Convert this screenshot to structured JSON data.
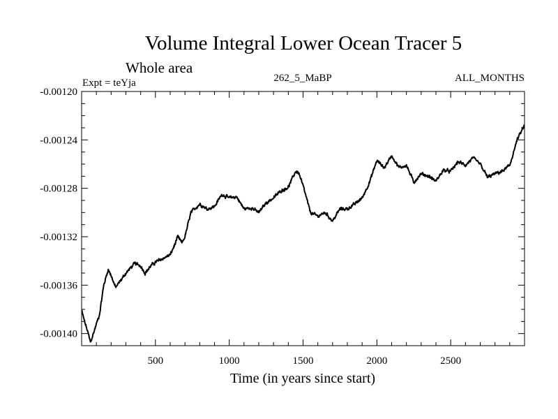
{
  "chart_data": {
    "type": "line",
    "title": "Volume Integral Lower Ocean Tracer 5",
    "subtitle": "Whole area",
    "experiment_label": "Expt = teYja",
    "run_label": "262_5_MaBP",
    "months_label": "ALL_MONTHS",
    "xlabel": "Time (in years since start)",
    "ylabel": "",
    "xlim": [
      0,
      3000
    ],
    "ylim": [
      -0.00141,
      -0.0012
    ],
    "x_ticks": [
      500,
      1000,
      1500,
      2000,
      2500
    ],
    "x_tick_labels": [
      "500",
      "1000",
      "1500",
      "2000",
      "2500"
    ],
    "y_ticks": [
      -0.0012,
      -0.00124,
      -0.00128,
      -0.00132,
      -0.00136,
      -0.0014
    ],
    "y_tick_labels": [
      "-0.00120",
      "-0.00124",
      "-0.00128",
      "-0.00132",
      "-0.00136",
      "-0.00140"
    ],
    "line_color": "#000000",
    "series": [
      {
        "name": "Volume Integral Lower Ocean Tracer 5",
        "x": [
          0,
          20,
          40,
          60,
          80,
          100,
          120,
          150,
          180,
          200,
          230,
          260,
          300,
          330,
          360,
          400,
          430,
          470,
          500,
          550,
          600,
          630,
          650,
          680,
          700,
          740,
          800,
          850,
          900,
          950,
          1000,
          1050,
          1100,
          1150,
          1200,
          1250,
          1300,
          1350,
          1400,
          1450,
          1470,
          1500,
          1550,
          1600,
          1650,
          1700,
          1750,
          1800,
          1850,
          1900,
          1950,
          2000,
          2050,
          2100,
          2150,
          2200,
          2250,
          2300,
          2350,
          2400,
          2450,
          2500,
          2550,
          2600,
          2650,
          2700,
          2750,
          2800,
          2850,
          2900,
          2950,
          3000
        ],
        "values": [
          -0.001381,
          -0.00139,
          -0.001398,
          -0.001407,
          -0.0014,
          -0.001392,
          -0.001385,
          -0.00136,
          -0.001347,
          -0.001352,
          -0.001362,
          -0.001357,
          -0.00135,
          -0.001346,
          -0.001342,
          -0.001344,
          -0.00135,
          -0.001344,
          -0.001341,
          -0.001338,
          -0.001335,
          -0.001327,
          -0.00132,
          -0.001325,
          -0.00132,
          -0.0013,
          -0.001293,
          -0.001297,
          -0.001295,
          -0.001285,
          -0.001288,
          -0.001287,
          -0.001297,
          -0.001296,
          -0.0013,
          -0.001292,
          -0.001288,
          -0.001282,
          -0.001279,
          -0.001266,
          -0.001267,
          -0.001278,
          -0.0013,
          -0.001303,
          -0.0013,
          -0.001307,
          -0.001297,
          -0.001297,
          -0.001293,
          -0.001288,
          -0.001275,
          -0.001257,
          -0.001263,
          -0.001253,
          -0.001263,
          -0.001261,
          -0.001275,
          -0.001268,
          -0.00127,
          -0.001274,
          -0.001265,
          -0.001266,
          -0.001258,
          -0.001261,
          -0.001255,
          -0.00126,
          -0.001271,
          -0.001268,
          -0.001266,
          -0.001261,
          -0.00124,
          -0.001228
        ]
      }
    ]
  }
}
